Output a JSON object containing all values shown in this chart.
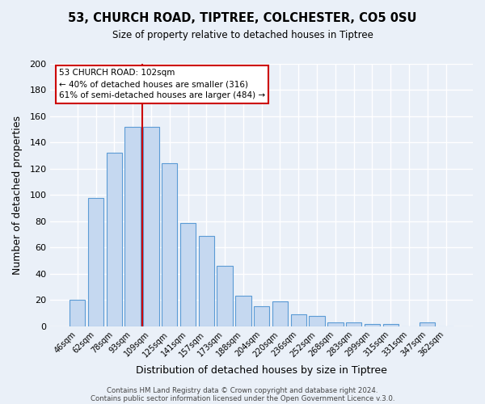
{
  "title": "53, CHURCH ROAD, TIPTREE, COLCHESTER, CO5 0SU",
  "subtitle": "Size of property relative to detached houses in Tiptree",
  "xlabel": "Distribution of detached houses by size in Tiptree",
  "ylabel": "Number of detached properties",
  "bar_labels": [
    "46sqm",
    "62sqm",
    "78sqm",
    "93sqm",
    "109sqm",
    "125sqm",
    "141sqm",
    "157sqm",
    "173sqm",
    "188sqm",
    "204sqm",
    "220sqm",
    "236sqm",
    "252sqm",
    "268sqm",
    "283sqm",
    "299sqm",
    "315sqm",
    "331sqm",
    "347sqm",
    "362sqm"
  ],
  "bar_values": [
    20,
    98,
    132,
    152,
    152,
    124,
    79,
    69,
    46,
    23,
    15,
    19,
    9,
    8,
    3,
    3,
    2,
    2,
    0,
    3,
    0
  ],
  "bar_color": "#c5d8f0",
  "bar_edge_color": "#5b9bd5",
  "background_color": "#eaf0f8",
  "fig_background_color": "#eaf0f8",
  "grid_color": "#ffffff",
  "vline_color": "#cc0000",
  "annotation_title": "53 CHURCH ROAD: 102sqm",
  "annotation_line1": "← 40% of detached houses are smaller (316)",
  "annotation_line2": "61% of semi-detached houses are larger (484) →",
  "annotation_box_color": "#ffffff",
  "annotation_border_color": "#cc0000",
  "ylim": [
    0,
    200
  ],
  "yticks": [
    0,
    20,
    40,
    60,
    80,
    100,
    120,
    140,
    160,
    180,
    200
  ],
  "footer_line1": "Contains HM Land Registry data © Crown copyright and database right 2024.",
  "footer_line2": "Contains public sector information licensed under the Open Government Licence v.3.0."
}
